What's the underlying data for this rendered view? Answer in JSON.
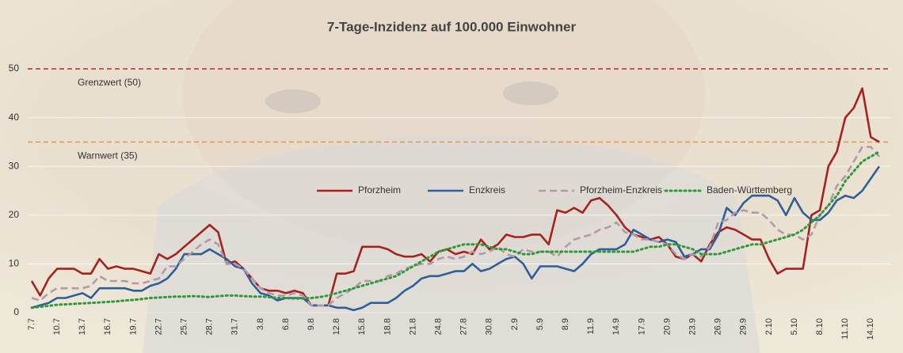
{
  "chart_data": {
    "type": "line",
    "title": "7-Tage-Inzidenz auf 100.000 Einwohner",
    "categories": [
      "7.7",
      null,
      null,
      "10.7",
      null,
      null,
      "13.7",
      null,
      null,
      "16.7",
      null,
      null,
      "19.7",
      null,
      null,
      "22.7",
      null,
      null,
      "25.7",
      null,
      null,
      "28.7",
      null,
      null,
      "31.7",
      null,
      null,
      "3.8",
      null,
      null,
      "6.8",
      null,
      null,
      "9.8",
      null,
      null,
      "12.8",
      null,
      null,
      "15.8",
      null,
      null,
      "18.8",
      null,
      null,
      "21.8",
      null,
      null,
      "24.8",
      null,
      null,
      "27.8",
      null,
      null,
      "30.8",
      null,
      null,
      "2.9",
      null,
      null,
      "5.9",
      null,
      null,
      "8.9",
      null,
      null,
      "11.9",
      null,
      null,
      "14.9",
      null,
      null,
      "17.9",
      null,
      null,
      "20.9",
      null,
      null,
      "23.9",
      null,
      null,
      "26.9",
      null,
      null,
      "29.9",
      null,
      null,
      "2.10",
      null,
      null,
      "5.10",
      null,
      null,
      "8.10",
      null,
      null,
      "11.10",
      null,
      null,
      "14.10",
      null
    ],
    "series": [
      {
        "name": "Pforzheim",
        "color": "#a5231c",
        "dash": "solid",
        "values": [
          6.5,
          3.5,
          7,
          9,
          9,
          9,
          8,
          8,
          11,
          9,
          9.5,
          9,
          9,
          8.5,
          8,
          12,
          11,
          12,
          13.5,
          15,
          16.5,
          18,
          16.5,
          10,
          10.5,
          9,
          7,
          5,
          4.5,
          4.5,
          4,
          4.5,
          4,
          1.5,
          1.5,
          1.5,
          8,
          8,
          8.5,
          13.5,
          13.5,
          13.5,
          13,
          12,
          11.5,
          11.5,
          12,
          10.5,
          12.5,
          13,
          12,
          12.5,
          12,
          15,
          13,
          14,
          16,
          15.5,
          15.5,
          16,
          16,
          14,
          21,
          20.5,
          21.5,
          20.5,
          23,
          23.5,
          22,
          20,
          17.5,
          16,
          15.5,
          15,
          15.5,
          14,
          11.5,
          11,
          12,
          10.5,
          14,
          16.5,
          17.5,
          17,
          16,
          15,
          15,
          11,
          8,
          9,
          9,
          9,
          20,
          21,
          30,
          33,
          40,
          42,
          46,
          36,
          35
        ]
      },
      {
        "name": "Enzkreis",
        "color": "#2f5f9a",
        "dash": "solid",
        "values": [
          1,
          1.5,
          2,
          3,
          3,
          3.5,
          4,
          3,
          5,
          5,
          5,
          5,
          4.5,
          4.5,
          5.5,
          6,
          7,
          9,
          12,
          12,
          12,
          13,
          12,
          11,
          9.5,
          9,
          6,
          4,
          3.5,
          2.5,
          3,
          3,
          3,
          1.5,
          1.5,
          1.5,
          1,
          1,
          0.5,
          1,
          2,
          2,
          2,
          3,
          4.5,
          5.5,
          7,
          7.5,
          7.5,
          8,
          8.5,
          8.5,
          10,
          8.5,
          9,
          10,
          11,
          11.5,
          10,
          7,
          9.5,
          9.5,
          9.5,
          9,
          8.5,
          10,
          12,
          13,
          13,
          13,
          14,
          17,
          16,
          15,
          14.5,
          15,
          14.5,
          11.5,
          12,
          13,
          13,
          16,
          21.5,
          20,
          22.5,
          24,
          24,
          24,
          23,
          20,
          23.5,
          20.5,
          19,
          19,
          20.5,
          23,
          24,
          23.5,
          25,
          27.5,
          30
        ]
      },
      {
        "name": "Pforzheim-Enzkreis",
        "color": "#b39aab",
        "dash": "dashed",
        "values": [
          3,
          2.5,
          4,
          5,
          5,
          5,
          5,
          5.5,
          7.5,
          6.5,
          6.5,
          6.5,
          6,
          6,
          6.5,
          7,
          9.5,
          9.5,
          11,
          12.5,
          14,
          15,
          14,
          10,
          10,
          9,
          7,
          5,
          4,
          3.5,
          3.5,
          4,
          3.5,
          1.5,
          1.5,
          1.5,
          3,
          4,
          5,
          6.5,
          6.5,
          6.5,
          7.5,
          8,
          9,
          9.5,
          10,
          10,
          11,
          11.5,
          11,
          11.5,
          12.5,
          12,
          12.5,
          13.5,
          12,
          11.5,
          13,
          12.5,
          12.5,
          12.5,
          11.5,
          13.5,
          15,
          15.5,
          16,
          17,
          17.5,
          18.5,
          16.5,
          16,
          15,
          15,
          14.5,
          14,
          12,
          11,
          12,
          11.5,
          13.5,
          18.5,
          19,
          20.5,
          21,
          20.5,
          20.5,
          19,
          17,
          16,
          16,
          15,
          16,
          20,
          22,
          26,
          28,
          31,
          34,
          34,
          32
        ]
      },
      {
        "name": "Baden-Württemberg",
        "color": "#2e9a3c",
        "dash": "dotted",
        "values": [
          1,
          1.2,
          1.4,
          1.6,
          1.7,
          1.8,
          1.9,
          2,
          2.1,
          2.2,
          2.3,
          2.5,
          2.6,
          2.8,
          3,
          3.1,
          3.2,
          3.3,
          3.3,
          3.4,
          3.3,
          3.2,
          3.4,
          3.5,
          3.5,
          3.4,
          3.3,
          3.3,
          3.2,
          3,
          3,
          2.9,
          2.9,
          3,
          3.2,
          3.5,
          4,
          4.5,
          5,
          5.5,
          6,
          6.5,
          7,
          7.5,
          8.5,
          9.5,
          10.5,
          11.5,
          12.5,
          13,
          13.5,
          14,
          14,
          14,
          13.5,
          13,
          13,
          12.5,
          12,
          12,
          12.5,
          12.5,
          12.5,
          12.5,
          12.5,
          12.5,
          12.5,
          12.5,
          12.5,
          12.5,
          12.5,
          12.5,
          13,
          13.5,
          13.5,
          14,
          14,
          13.5,
          13,
          12,
          12,
          12,
          12.5,
          13,
          13.5,
          14,
          14,
          14.5,
          15,
          15.5,
          16,
          17,
          18.5,
          20,
          22,
          24,
          27,
          29,
          31,
          32,
          33
        ]
      }
    ],
    "reference_lines": [
      {
        "label": "Grenzwert (50)",
        "value": 50,
        "color": "#c8281e"
      },
      {
        "label": "Warnwert (35)",
        "value": 35,
        "color": "#e89a45"
      }
    ],
    "ylim": [
      0,
      50
    ],
    "yticks": [
      0,
      10,
      20,
      30,
      40,
      50
    ],
    "grid": true
  }
}
